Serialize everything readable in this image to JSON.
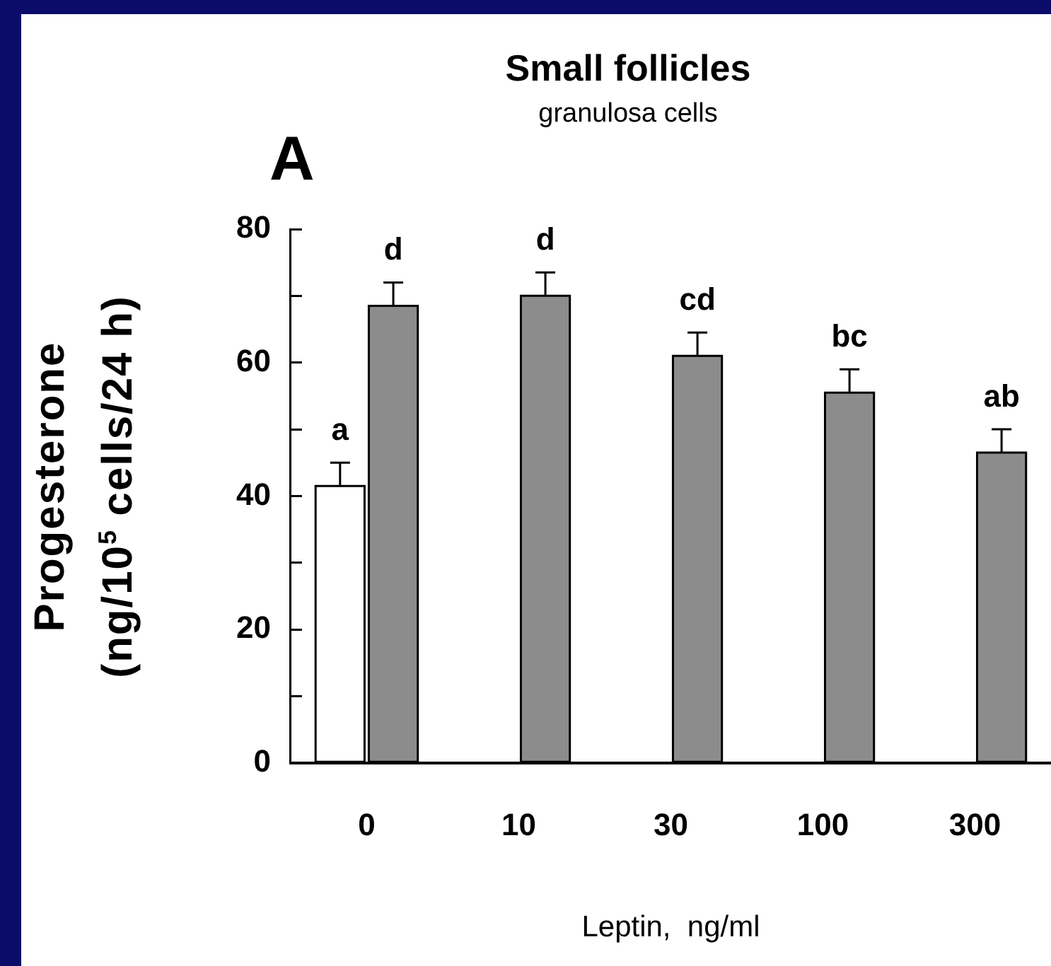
{
  "chart_data": {
    "type": "bar",
    "title": "Small follicles",
    "subtitle": "granulosa cells",
    "xlabel": "Leptin,  ng/ml",
    "ylabel": "Progesterone\n(ng/10$^{5}$ cells/24  h)",
    "categories": [
      "0",
      "10",
      "30",
      "100",
      "300"
    ],
    "series": [
      {
        "color": "#ffffff",
        "values": [
          41.5,
          null,
          null,
          null,
          null
        ],
        "errors": [
          3.5,
          null,
          null,
          null,
          null
        ]
      },
      {
        "color": "#8c8c8c",
        "values": [
          68.5,
          70,
          61,
          55.5,
          46.5
        ],
        "errors": [
          3.5,
          3.5,
          3.5,
          3.5,
          3.5
        ]
      }
    ],
    "ylim": [
      0,
      80
    ],
    "yticks": [
      0,
      {
        "value": 10,
        "label": null
      },
      20,
      {
        "value": 30,
        "label": null
      },
      40,
      {
        "value": 50,
        "label": null
      },
      60,
      {
        "value": 70,
        "label": null
      },
      80
    ],
    "legend": false,
    "annotations": [
      "A",
      "a",
      "d",
      "d",
      "cd",
      "bc",
      "ab"
    ]
  }
}
